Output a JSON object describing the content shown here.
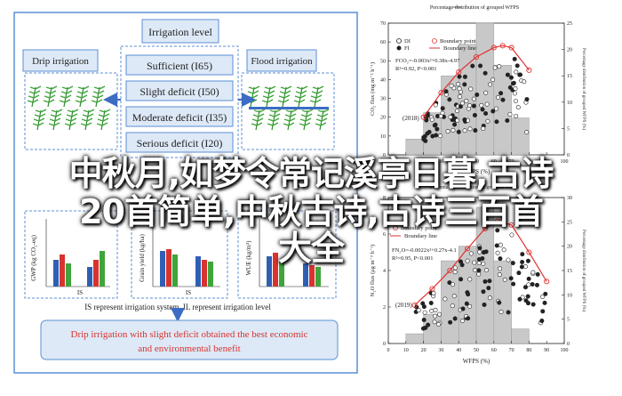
{
  "colors": {
    "panel_border": "#5b8fd6",
    "box_fill": "#dde9f7",
    "arrow": "#3c6cc4",
    "bar_blue": "#2f5fb5",
    "bar_red": "#d8332e",
    "bar_green": "#3fa53a",
    "hist_fill": "#c8c8c8",
    "curve_red": "#e03030"
  },
  "left_panel": {
    "title": "Irrigation level",
    "drip": "Drip irrigation",
    "flood": "Flood irrigation",
    "levels": [
      "Sufficient (I65)",
      "Slight deficit (I50)",
      "Moderate deficit (I35)",
      "Serious deficit (I20)"
    ],
    "legend": [
      "I65",
      "I50",
      "I35"
    ],
    "chart_ylabels": [
      "GWP (kg CO₂-eq)",
      "Grain yield (kg/ha)",
      "WUE (kg/m³)"
    ],
    "chart_xticks": [
      "IS",
      "IS"
    ],
    "caption": "IS represent irrigation system, IL represent irrigation level",
    "conclusion_line1": "Drip irrigation with slight deficit obtained the best economic",
    "conclusion_line2": "and environmental benefit"
  },
  "top_chart": {
    "title": "Percentage distribution of grouped WFPS",
    "legend": [
      "DI",
      "Boundary point",
      "FI",
      "Boundary line"
    ],
    "equation_line1": "FCO₂=-0.003x²+0.38x-4.97",
    "equation_line2": "R²=0.92, P<0.001",
    "year": "(2018)",
    "ylabel_left": "CO₂ flux (mg m⁻² h⁻¹)",
    "ylabel_right": "Percentage distribution of grouped WFPS (%)",
    "xlabel": "WFPS (%)",
    "left_ticks": [
      "0",
      "10",
      "20",
      "30",
      "40",
      "50",
      "60",
      "70"
    ],
    "right_ticks": [
      "0",
      "5",
      "10",
      "15",
      "20",
      "25"
    ],
    "x_ticks": [
      "0",
      "10",
      "20",
      "30",
      "40",
      "50",
      "60",
      "70",
      "80",
      "90",
      "100"
    ]
  },
  "bottom_chart": {
    "title": "Percentage distribution of grouped WFPS",
    "legend": [
      "Boundary point",
      "Boundary line"
    ],
    "equation_line1": "FN₂O=-0.0022x²+0.27x-4.1",
    "equation_line2": "R²=0.95, P<0.001",
    "year": "(2019)",
    "ylabel_left": "N₂O flux (μg m⁻² h⁻¹)",
    "ylabel_right": "Percentage distribution of grouped WFPS (%)",
    "xlabel": "WFPS (%)",
    "left_ticks": [
      "0",
      "2",
      "4",
      "6",
      "8"
    ],
    "right_ticks": [
      "0",
      "5",
      "10",
      "15",
      "20",
      "25",
      "30"
    ],
    "x_ticks": [
      "0",
      "10",
      "20",
      "30",
      "40",
      "50",
      "60",
      "70",
      "80",
      "90",
      "100"
    ]
  },
  "chart_data": [
    {
      "type": "bar",
      "title": "",
      "xlabel": "WFPS (%)",
      "ylabel": "Percentage distribution of grouped WFPS (%)",
      "categories": [
        "15",
        "25",
        "35",
        "45",
        "55",
        "65",
        "75"
      ],
      "values": [
        3,
        8,
        15,
        21,
        25,
        17,
        7
      ],
      "ylim": [
        0,
        25
      ]
    },
    {
      "type": "line",
      "title": "",
      "xlabel": "WFPS (%)",
      "ylabel": "CO₂ flux (mg m⁻² h⁻¹)",
      "x": [
        20,
        30,
        40,
        50,
        60,
        65,
        70,
        80
      ],
      "series": [
        {
          "name": "Boundary line",
          "values": [
            20,
            33,
            44,
            52,
            57,
            58,
            57,
            45
          ]
        }
      ],
      "ylim": [
        0,
        70
      ]
    },
    {
      "type": "bar",
      "title": "",
      "xlabel": "WFPS (%)",
      "ylabel": "Percentage distribution of grouped WFPS (%)",
      "categories": [
        "15",
        "25",
        "35",
        "45",
        "55",
        "65",
        "75"
      ],
      "values": [
        2,
        6,
        17,
        20,
        28,
        17,
        3
      ],
      "ylim": [
        0,
        30
      ]
    },
    {
      "type": "line",
      "title": "",
      "xlabel": "WFPS (%)",
      "ylabel": "N₂O flux (μg m⁻² h⁻¹)",
      "x": [
        15,
        25,
        35,
        45,
        55,
        62,
        70,
        80,
        90
      ],
      "series": [
        {
          "name": "Boundary line",
          "values": [
            2.1,
            3.0,
            4.0,
            5.2,
            6.3,
            6.7,
            6.5,
            5.0,
            3.4
          ]
        }
      ],
      "ylim": [
        0,
        8
      ]
    }
  ],
  "overlay": {
    "line1": "中秋月,如梦令常记溪亭日暮,古诗",
    "line2": "20首简单,中秋古诗,古诗三百首",
    "line3": "大全"
  }
}
